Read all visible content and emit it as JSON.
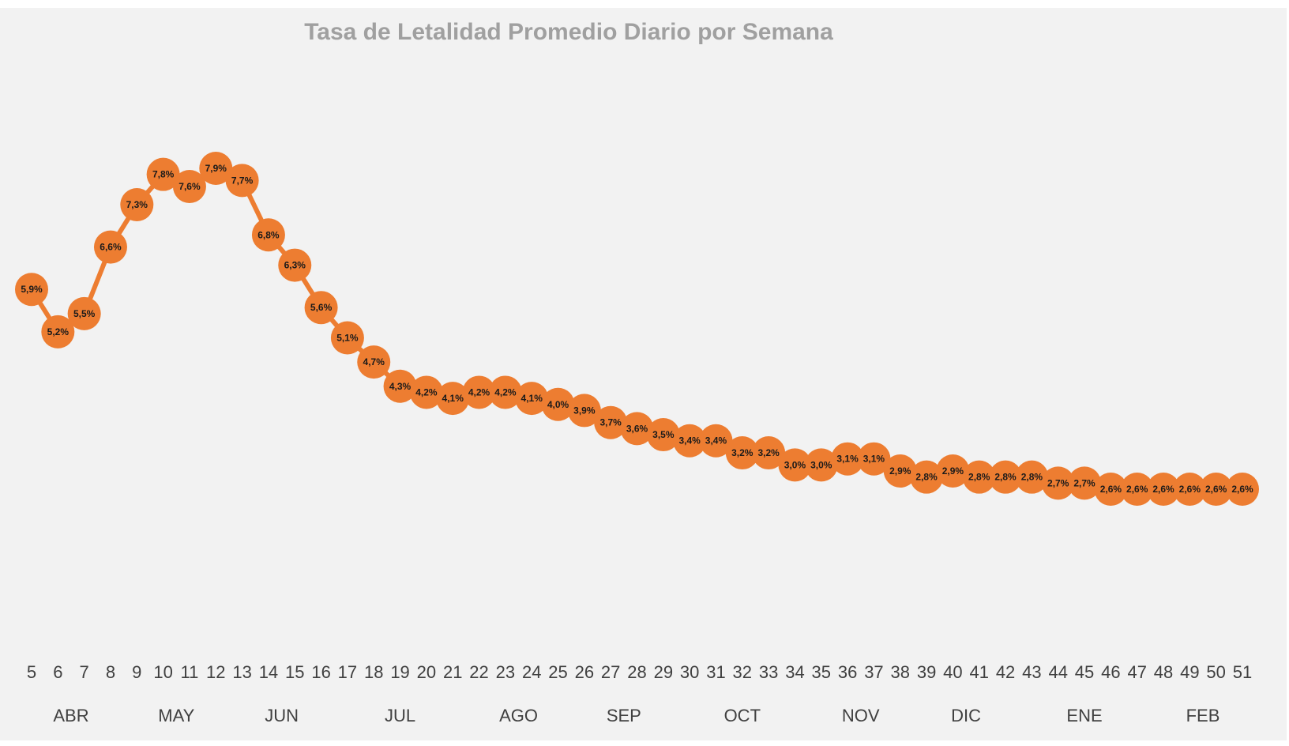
{
  "chart_data": {
    "type": "line",
    "title": "Tasa de Letalidad Promedio Diario por Semana",
    "xlabel": "",
    "ylabel": "",
    "grid": false,
    "legend": "none",
    "ylim": [
      0,
      9
    ],
    "x": [
      5,
      6,
      7,
      8,
      9,
      10,
      11,
      12,
      13,
      14,
      15,
      16,
      17,
      18,
      19,
      20,
      21,
      22,
      23,
      24,
      25,
      26,
      27,
      28,
      29,
      30,
      31,
      32,
      33,
      34,
      35,
      36,
      37,
      38,
      39,
      40,
      41,
      42,
      43,
      44,
      45,
      46,
      47,
      48,
      49,
      50,
      51
    ],
    "values": [
      5.9,
      5.2,
      5.5,
      6.6,
      7.3,
      7.8,
      7.6,
      7.9,
      7.7,
      6.8,
      6.3,
      5.6,
      5.1,
      4.7,
      4.3,
      4.2,
      4.1,
      4.2,
      4.2,
      4.1,
      4.0,
      3.9,
      3.7,
      3.6,
      3.5,
      3.4,
      3.4,
      3.2,
      3.2,
      3.0,
      3.0,
      3.1,
      3.1,
      2.9,
      2.8,
      2.9,
      2.8,
      2.8,
      2.8,
      2.7,
      2.7,
      2.6,
      2.6,
      2.6,
      2.6,
      2.6,
      2.6
    ],
    "data_labels": [
      "5,9%",
      "5,2%",
      "5,5%",
      "6,6%",
      "7,3%",
      "7,8%",
      "7,6%",
      "7,9%",
      "7,7%",
      "6,8%",
      "6,3%",
      "5,6%",
      "5,1%",
      "4,7%",
      "4,3%",
      "4,2%",
      "4,1%",
      "4,2%",
      "4,2%",
      "4,1%",
      "4,0%",
      "3,9%",
      "3,7%",
      "3,6%",
      "3,5%",
      "3,4%",
      "3,4%",
      "3,2%",
      "3,2%",
      "3,0%",
      "3,0%",
      "3,1%",
      "3,1%",
      "2,9%",
      "2,8%",
      "2,9%",
      "2,8%",
      "2,8%",
      "2,8%",
      "2,7%",
      "2,7%",
      "2,6%",
      "2,6%",
      "2,6%",
      "2,6%",
      "2,6%",
      "2,6%"
    ],
    "months": [
      {
        "label": "ABR",
        "weeks": [
          5,
          8
        ]
      },
      {
        "label": "MAY",
        "weeks": [
          9,
          12
        ]
      },
      {
        "label": "JUN",
        "weeks": [
          13,
          16
        ]
      },
      {
        "label": "JUL",
        "weeks": [
          17,
          21
        ]
      },
      {
        "label": "AGO",
        "weeks": [
          22,
          25
        ]
      },
      {
        "label": "SEP",
        "weeks": [
          26,
          29
        ]
      },
      {
        "label": "OCT",
        "weeks": [
          30,
          34
        ]
      },
      {
        "label": "NOV",
        "weeks": [
          35,
          38
        ]
      },
      {
        "label": "DIC",
        "weeks": [
          39,
          42
        ]
      },
      {
        "label": "ENE",
        "weeks": [
          43,
          47
        ]
      },
      {
        "label": "FEB",
        "weeks": [
          48,
          51
        ]
      }
    ],
    "colors": {
      "series": "#ed7d31",
      "background": "#f2f2f2",
      "title": "#a0a0a0"
    }
  }
}
